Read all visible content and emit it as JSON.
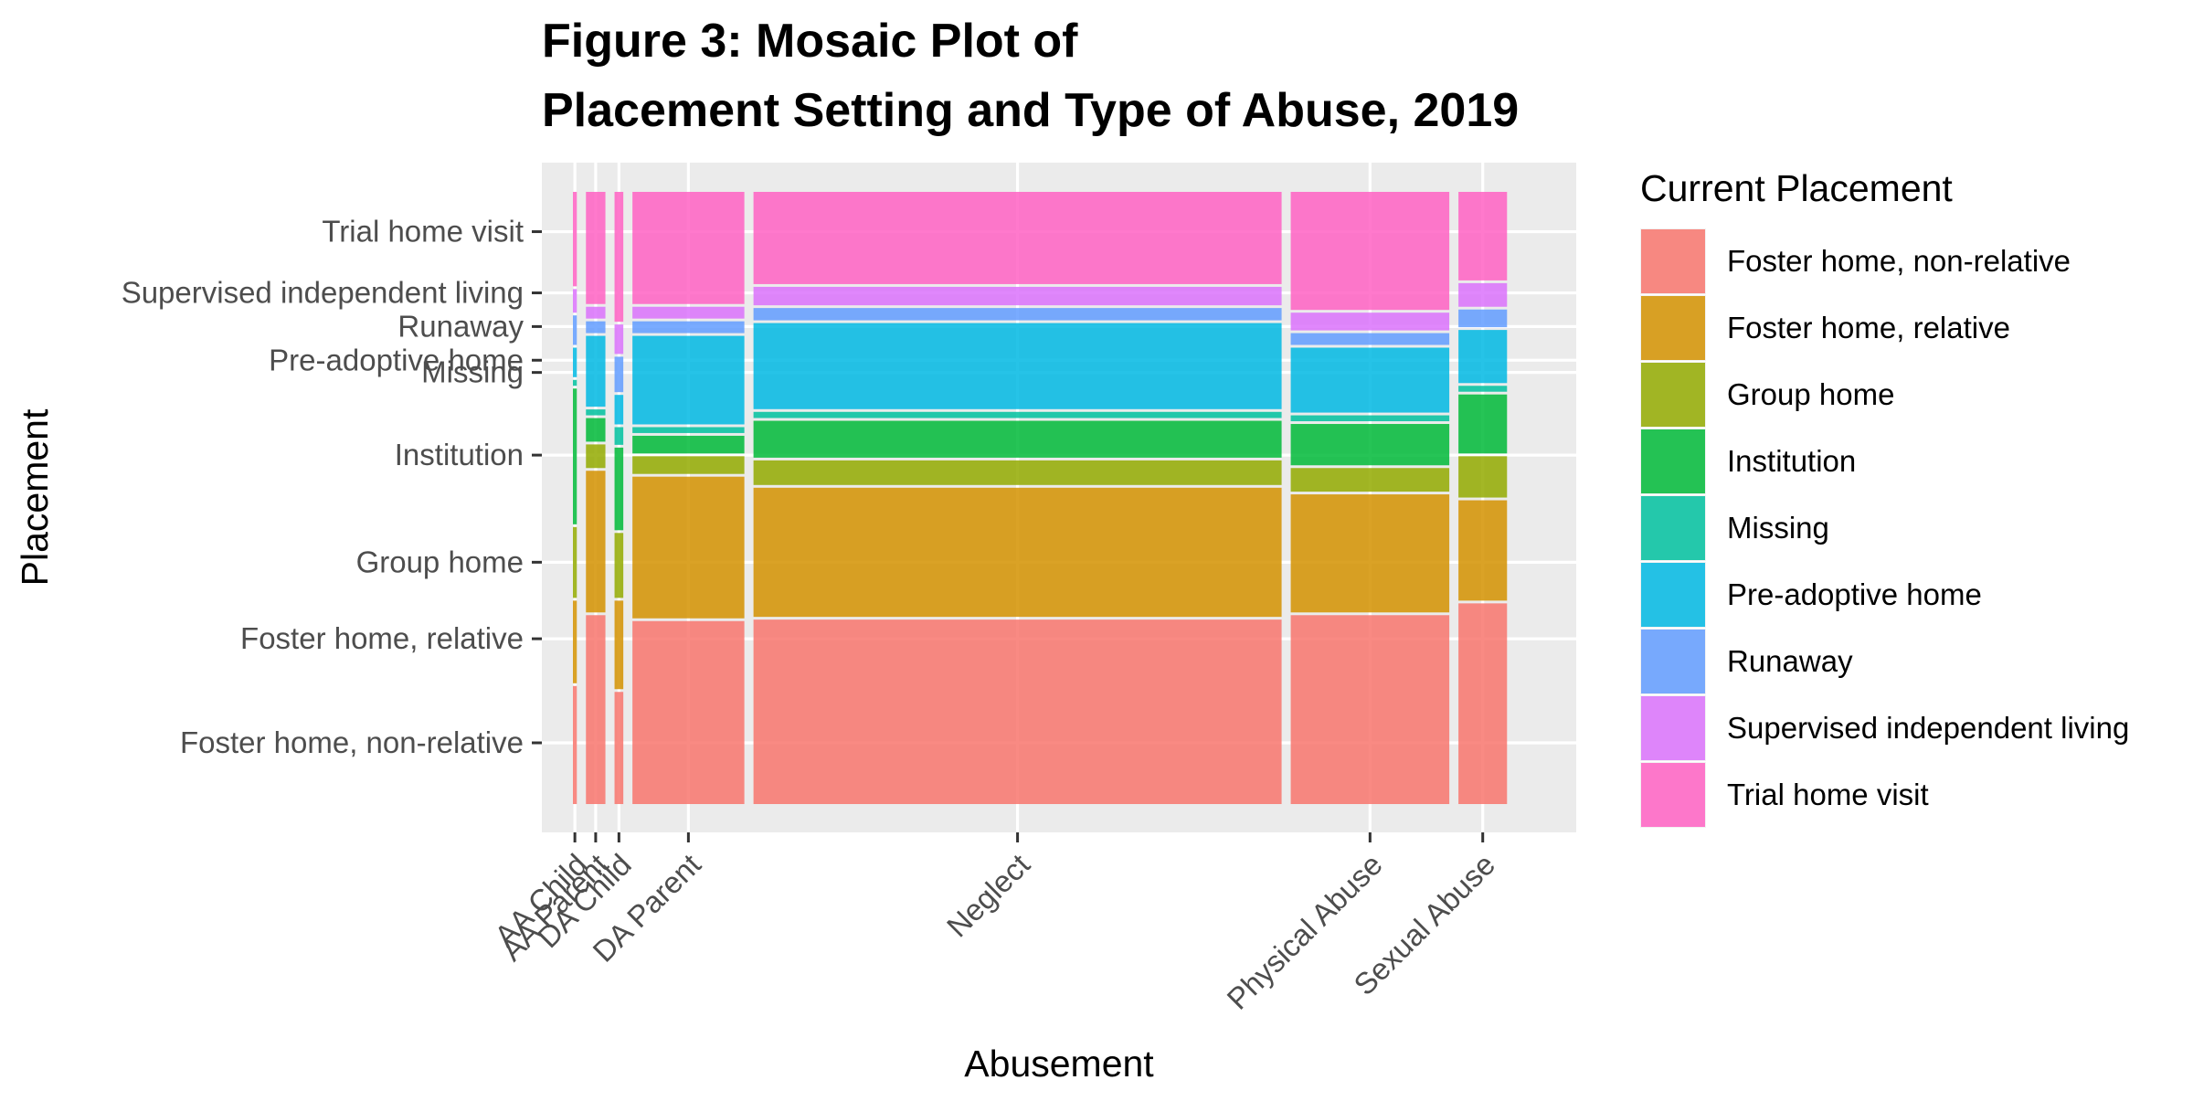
{
  "chart_data": {
    "type": "mosaic",
    "title_lines": [
      "Figure 3: Mosaic Plot of",
      "Placement Setting and Type of Abuse, 2019"
    ],
    "xlabel": "Abusement",
    "ylabel": "Placement",
    "legend": {
      "title": "Current Placement",
      "position": "right"
    },
    "grid": true,
    "placements": [
      {
        "name": "Foster home, non-relative",
        "color": "#F8766D"
      },
      {
        "name": "Foster home, relative",
        "color": "#D39200"
      },
      {
        "name": "Group home",
        "color": "#93AA00"
      },
      {
        "name": "Institution",
        "color": "#00BA38"
      },
      {
        "name": "Missing",
        "color": "#00C19F"
      },
      {
        "name": "Pre-adoptive home",
        "color": "#00B9E3"
      },
      {
        "name": "Runaway",
        "color": "#619CFF"
      },
      {
        "name": "Supervised independent living",
        "color": "#DB72FB"
      },
      {
        "name": "Trial home visit",
        "color": "#FF61C3"
      }
    ],
    "y_tick_labels": [
      "Foster home, non-relative",
      "Foster home, relative",
      "Group home",
      "Institution",
      "Missing",
      "Pre-adoptive home",
      "Runaway",
      "Supervised independent living",
      "Trial home visit"
    ],
    "y_tick_positions": [
      0.1,
      0.27,
      0.395,
      0.57,
      0.705,
      0.725,
      0.78,
      0.835,
      0.935
    ],
    "categories": [
      "AA Child",
      "AA Parent",
      "DA Child",
      "DA Parent",
      "Neglect",
      "Physical Abuse",
      "Sexual Abuse"
    ],
    "column_widths": [
      0.0043,
      0.0215,
      0.0097,
      0.1237,
      0.5838,
      0.1753,
      0.0537
    ],
    "proportions": {
      "AA Child": [
        0.2,
        0.14,
        0.12,
        0.23,
        0.01,
        0.05,
        0.05,
        0.04,
        0.16
      ],
      "AA Parent": [
        0.32,
        0.24,
        0.04,
        0.04,
        0.01,
        0.12,
        0.02,
        0.02,
        0.19
      ],
      "DA Child": [
        0.19,
        0.15,
        0.11,
        0.14,
        0.03,
        0.05,
        0.06,
        0.05,
        0.22
      ],
      "DA Parent": [
        0.31,
        0.24,
        0.03,
        0.03,
        0.01,
        0.15,
        0.02,
        0.02,
        0.19
      ],
      "Neglect": [
        0.3,
        0.21,
        0.04,
        0.06,
        0.01,
        0.14,
        0.02,
        0.03,
        0.15
      ],
      "Physical Abuse": [
        0.32,
        0.2,
        0.04,
        0.07,
        0.01,
        0.11,
        0.02,
        0.03,
        0.2
      ],
      "Sexual Abuse": [
        0.34,
        0.17,
        0.07,
        0.1,
        0.01,
        0.09,
        0.03,
        0.04,
        0.15
      ]
    }
  }
}
